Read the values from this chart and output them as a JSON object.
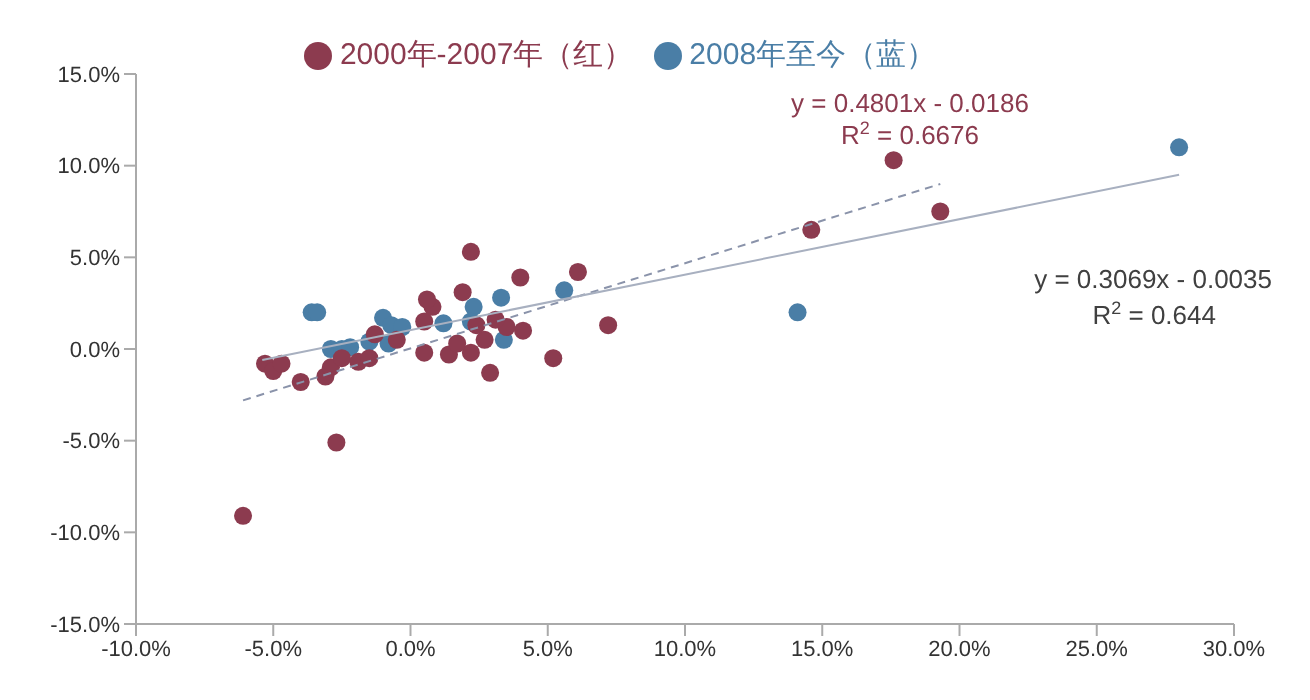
{
  "chart_data": {
    "type": "scatter",
    "legend": "top",
    "marker": "circle",
    "grid": false,
    "xlim": [
      -10,
      30
    ],
    "xticks": [
      {
        "value": -10,
        "label": "-10.0%"
      },
      {
        "value": -5,
        "label": "-5.0%"
      },
      {
        "value": 0,
        "label": "0.0%"
      },
      {
        "value": 5,
        "label": "5.0%"
      },
      {
        "value": 10,
        "label": "10.0%"
      },
      {
        "value": 15,
        "label": "15.0%"
      },
      {
        "value": 20,
        "label": "20.0%"
      },
      {
        "value": 25,
        "label": "25.0%"
      },
      {
        "value": 30,
        "label": "30.0%"
      }
    ],
    "ylim": [
      -15,
      15
    ],
    "yticks": [
      {
        "value": -15,
        "label": "-15.0%"
      },
      {
        "value": -10,
        "label": "-10.0%"
      },
      {
        "value": -5,
        "label": "-5.0%"
      },
      {
        "value": 0,
        "label": "0.0%"
      },
      {
        "value": 5,
        "label": "5.0%"
      },
      {
        "value": 10,
        "label": "10.0%"
      },
      {
        "value": 15,
        "label": "15.0%"
      }
    ],
    "annotations": [
      "y = 0.4801x - 0.0186",
      "R$^{2}$ = 0.6676",
      "y = 0.3069x - 0.0035",
      "R$^{2}$ = 0.644"
    ],
    "series": [
      {
        "name": "2008年至今（蓝）",
        "color": "#4a7ea6",
        "x": [
          -3.6,
          -3.4,
          -1.0,
          -0.7,
          -0.3,
          -2.9,
          -2.5,
          -2.2,
          -1.5,
          -0.8,
          2.3,
          3.3,
          5.6,
          2.2,
          1.2,
          3.4,
          28.0,
          14.1
        ],
        "values": [
          2.0,
          2.0,
          1.7,
          1.3,
          1.2,
          0,
          0,
          0.1,
          0.4,
          0.3,
          2.3,
          2.8,
          3.2,
          1.5,
          1.4,
          0.5,
          11.0,
          2.0
        ]
      },
      {
        "name": "2000年-2007年（红）",
        "color": "#8c3b4f",
        "x": [
          -6.1,
          -2.7,
          -5.3,
          -5.0,
          -4.7,
          -4.0,
          -3.1,
          -2.9,
          -2.5,
          -1.9,
          -1.5,
          -1.3,
          -0.5,
          0.5,
          1.4,
          2.2,
          2.9,
          5.2,
          2.7,
          1.7,
          4.1,
          3.5,
          2.4,
          3.1,
          0.5,
          7.2,
          0.8,
          0.6,
          1.9,
          4.0,
          6.1,
          2.2,
          14.6,
          17.6,
          19.3
        ],
        "values": [
          -9.1,
          -5.1,
          -0.8,
          -1.2,
          -0.8,
          -1.8,
          -1.5,
          -1.0,
          -0.5,
          -0.7,
          -0.5,
          0.8,
          0.5,
          -0.2,
          -0.3,
          -0.2,
          -1.3,
          -0.5,
          0.5,
          0.3,
          1.0,
          1.2,
          1.3,
          1.6,
          1.5,
          1.3,
          2.3,
          2.7,
          3.1,
          3.9,
          4.2,
          5.3,
          6.5,
          10.3,
          7.5
        ]
      },
      {
        "type": "line",
        "marker": "none",
        "line_style": "dashed",
        "color": "#8a93aa",
        "x": [
          -6.1,
          19.3
        ],
        "values": [
          -2.8,
          9.0
        ]
      },
      {
        "type": "line",
        "marker": "none",
        "line_style": "solid",
        "color": "#a8b0c0",
        "x": [
          -5.4,
          28
        ],
        "values": [
          -0.6,
          9.5
        ]
      }
    ]
  }
}
